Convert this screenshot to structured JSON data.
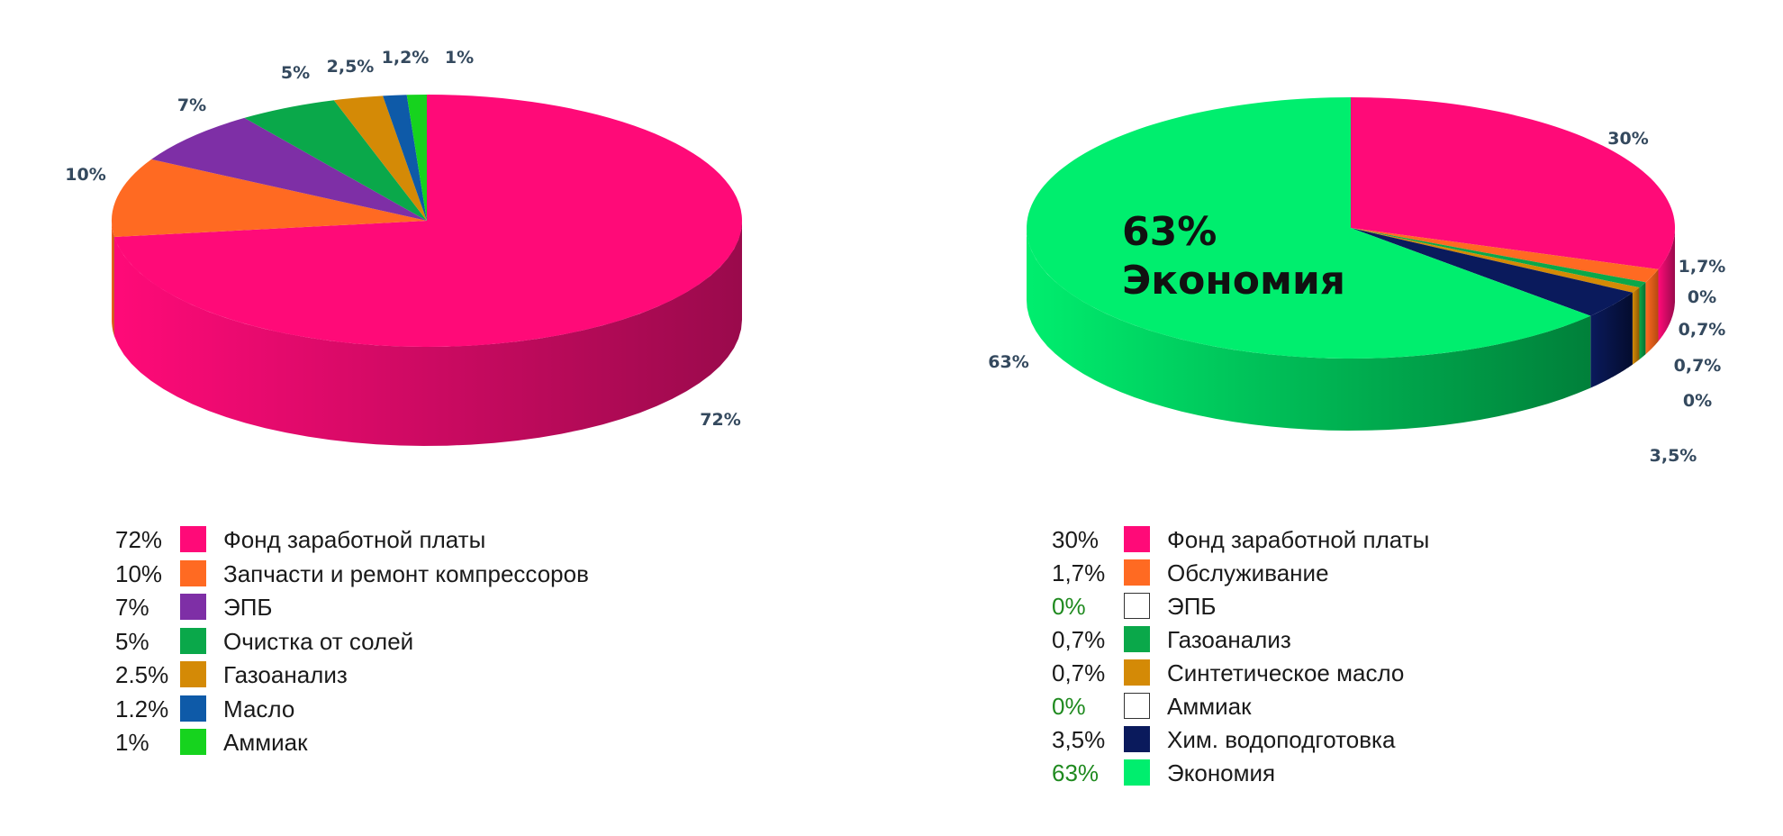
{
  "chart_data": [
    {
      "type": "pie",
      "legend_position": "bottom",
      "categories": [
        "Фонд заработной платы",
        "Запчасти и ремонт компрессоров",
        "ЭПБ",
        "Очистка от солей",
        "Газоанализ",
        "Масло",
        "Аммиак"
      ],
      "values": [
        72,
        10,
        7,
        5,
        2.5,
        1.2,
        1
      ],
      "slice_labels": [
        "72%",
        "10%",
        "7%",
        "5%",
        "2,5%",
        "1,2%",
        "1%"
      ],
      "legend_values": [
        "72%",
        "10%",
        "7%",
        "5%",
        "2.5%",
        "1.2%",
        "1%"
      ],
      "colors": [
        "#ff0a78",
        "#ff6a22",
        "#7e2fa6",
        "#0aa84a",
        "#d48a06",
        "#0e5aa8",
        "#16d31e"
      ],
      "side_colors": [
        "#9a0a4c",
        "#b54a10",
        "#571e73",
        "#076e31",
        "#8c5a04",
        "#083a6e",
        "#0d8a13"
      ]
    },
    {
      "type": "pie",
      "legend_position": "bottom",
      "categories": [
        "Фонд заработной платы",
        "Обслуживание",
        "ЭПБ",
        "Газоанализ",
        "Синтетическое масло",
        "Аммиак",
        "Хим. водоподготовка",
        "Экономия"
      ],
      "values": [
        30,
        1.7,
        0,
        0.7,
        0.7,
        0,
        3.5,
        63
      ],
      "slice_labels": [
        "30%",
        "1,7%",
        "0%",
        "0,7%",
        "0,7%",
        "0%",
        "3,5%",
        "63%"
      ],
      "legend_values": [
        "30%",
        "1,7%",
        "0%",
        "0,7%",
        "0,7%",
        "0%",
        "3,5%",
        "63%"
      ],
      "legend_value_colors": [
        "#1a1a1a",
        "#1a1a1a",
        "#1f8a1f",
        "#1a1a1a",
        "#1a1a1a",
        "#1f8a1f",
        "#1a1a1a",
        "#1f8a1f"
      ],
      "colors": [
        "#ff0a78",
        "#ff6a22",
        "#ffffff",
        "#0aa84a",
        "#d48a06",
        "#ffffff",
        "#0a1a5c",
        "#00ee6e"
      ],
      "side_colors": [
        "#9a0a4c",
        "#b54a10",
        "#cccccc",
        "#076e31",
        "#8c5a04",
        "#cccccc",
        "#040c2e",
        "#00803a"
      ],
      "center_annotation": [
        "63%",
        "Экономия"
      ]
    }
  ]
}
